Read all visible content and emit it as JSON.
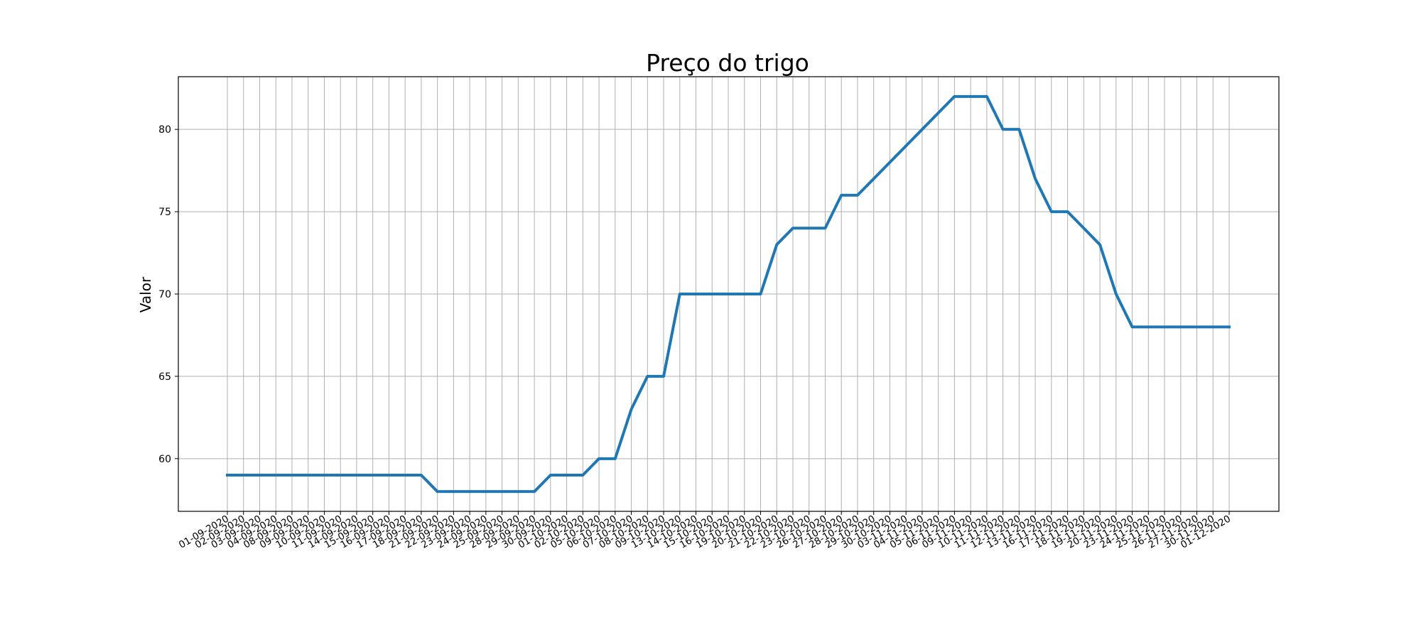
{
  "chart_data": {
    "type": "line",
    "title": "Preço do trigo",
    "xlabel": "",
    "ylabel": "Valor",
    "categories": [
      "01-09-2020",
      "02-09-2020",
      "03-09-2020",
      "04-09-2020",
      "08-09-2020",
      "09-09-2020",
      "10-09-2020",
      "11-09-2020",
      "14-09-2020",
      "15-09-2020",
      "16-09-2020",
      "17-09-2020",
      "18-09-2020",
      "21-09-2020",
      "22-09-2020",
      "23-09-2020",
      "24-09-2020",
      "25-09-2020",
      "28-09-2020",
      "29-09-2020",
      "30-09-2020",
      "01-10-2020",
      "02-10-2020",
      "05-10-2020",
      "06-10-2020",
      "07-10-2020",
      "08-10-2020",
      "09-10-2020",
      "13-10-2020",
      "14-10-2020",
      "15-10-2020",
      "16-10-2020",
      "19-10-2020",
      "20-10-2020",
      "21-10-2020",
      "22-10-2020",
      "23-10-2020",
      "26-10-2020",
      "27-10-2020",
      "28-10-2020",
      "29-10-2020",
      "30-10-2020",
      "03-11-2020",
      "04-11-2020",
      "05-11-2020",
      "06-11-2020",
      "09-11-2020",
      "10-11-2020",
      "11-11-2020",
      "12-11-2020",
      "13-11-2020",
      "16-11-2020",
      "17-11-2020",
      "18-11-2020",
      "19-11-2020",
      "20-11-2020",
      "23-11-2020",
      "24-11-2020",
      "25-11-2020",
      "26-11-2020",
      "27-11-2020",
      "30-11-2020",
      "01-12-2020"
    ],
    "series": [
      {
        "values": [
          59,
          59,
          59,
          59,
          59,
          59,
          59,
          59,
          59,
          59,
          59,
          59,
          59,
          58,
          58,
          58,
          58,
          58,
          58,
          58,
          59,
          59,
          59,
          60,
          60,
          63,
          65,
          65,
          70,
          70,
          70,
          70,
          70,
          70,
          73,
          74,
          74,
          74,
          76,
          76,
          77,
          78,
          79,
          80,
          81,
          82,
          82,
          82,
          80,
          80,
          77,
          75,
          75,
          74,
          73,
          70,
          68,
          68,
          68,
          68,
          68,
          68,
          68
        ],
        "color": "#1f77b4"
      }
    ],
    "yticks": [
      60,
      65,
      70,
      75,
      80
    ],
    "ylim": [
      56.8,
      83.2
    ],
    "grid": true,
    "legend": "none"
  }
}
